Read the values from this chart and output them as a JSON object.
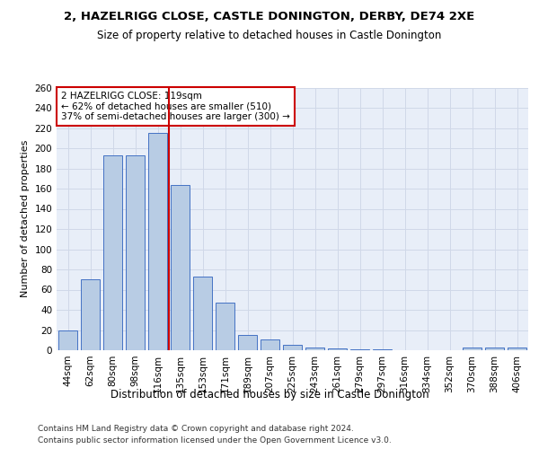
{
  "title1": "2, HAZELRIGG CLOSE, CASTLE DONINGTON, DERBY, DE74 2XE",
  "title2": "Size of property relative to detached houses in Castle Donington",
  "xlabel": "Distribution of detached houses by size in Castle Donington",
  "ylabel": "Number of detached properties",
  "categories": [
    "44sqm",
    "62sqm",
    "80sqm",
    "98sqm",
    "116sqm",
    "135sqm",
    "153sqm",
    "171sqm",
    "189sqm",
    "207sqm",
    "225sqm",
    "243sqm",
    "261sqm",
    "279sqm",
    "297sqm",
    "316sqm",
    "334sqm",
    "352sqm",
    "370sqm",
    "388sqm",
    "406sqm"
  ],
  "values": [
    20,
    70,
    193,
    193,
    215,
    164,
    73,
    47,
    15,
    11,
    5,
    3,
    2,
    1,
    1,
    0,
    0,
    0,
    3,
    3,
    3
  ],
  "bar_color": "#b8cce4",
  "bar_edge_color": "#4472c4",
  "vline_x_index": 4,
  "vline_color": "#cc0000",
  "annotation_text": "2 HAZELRIGG CLOSE: 119sqm\n← 62% of detached houses are smaller (510)\n37% of semi-detached houses are larger (300) →",
  "annotation_box_color": "#ffffff",
  "annotation_box_edge": "#cc0000",
  "grid_color": "#d0d8e8",
  "ylim": [
    0,
    260
  ],
  "yticks": [
    0,
    20,
    40,
    60,
    80,
    100,
    120,
    140,
    160,
    180,
    200,
    220,
    240,
    260
  ],
  "footer1": "Contains HM Land Registry data © Crown copyright and database right 2024.",
  "footer2": "Contains public sector information licensed under the Open Government Licence v3.0.",
  "title1_fontsize": 9.5,
  "title2_fontsize": 8.5,
  "xlabel_fontsize": 8.5,
  "ylabel_fontsize": 8,
  "tick_fontsize": 7.5,
  "annotation_fontsize": 7.5,
  "footer_fontsize": 6.5,
  "bg_color": "#e8eef8"
}
